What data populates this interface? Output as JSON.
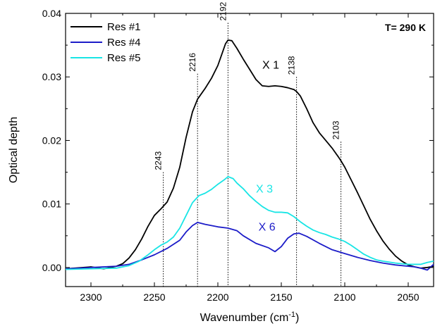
{
  "chart_data": {
    "type": "line",
    "xlabel": "Wavenumber (cm",
    "xlabel_sup": "-1",
    "xlabel_end": ")",
    "ylabel": "Optical depth",
    "xlim": [
      2320,
      2030
    ],
    "ylim": [
      -0.003,
      0.04
    ],
    "x_reversed": true,
    "xticks": [
      2300,
      2250,
      2200,
      2150,
      2100,
      2050
    ],
    "xtick_labels": [
      "2300",
      "2250",
      "2200",
      "2150",
      "2100",
      "2050"
    ],
    "yticks": [
      0.0,
      0.01,
      0.02,
      0.03,
      0.04
    ],
    "ytick_labels": [
      "0.00",
      "0.01",
      "0.02",
      "0.03",
      "0.04"
    ],
    "grid": false,
    "legend": "top-left",
    "temperature_label": "T= 290 K",
    "series": [
      {
        "name": "Res #1",
        "color": "#000000",
        "multiplier": "X 1",
        "multiplier_pos": [
          2165,
          0.0313
        ],
        "x": [
          2320,
          2300,
          2290,
          2280,
          2275,
          2270,
          2265,
          2260,
          2255,
          2250,
          2245,
          2240,
          2235,
          2230,
          2225,
          2220,
          2216,
          2210,
          2205,
          2200,
          2197,
          2194,
          2192,
          2189,
          2185,
          2180,
          2175,
          2170,
          2165,
          2160,
          2155,
          2150,
          2145,
          2140,
          2138,
          2135,
          2130,
          2125,
          2120,
          2115,
          2110,
          2105,
          2103,
          2100,
          2095,
          2090,
          2085,
          2080,
          2075,
          2070,
          2065,
          2060,
          2055,
          2050,
          2045,
          2040,
          2035,
          2030
        ],
        "y": [
          -0.0002,
          0.0001,
          -0.0002,
          0.0002,
          0.0006,
          0.0015,
          0.0028,
          0.0045,
          0.0065,
          0.0082,
          0.0092,
          0.0103,
          0.0125,
          0.0158,
          0.0205,
          0.0245,
          0.0265,
          0.0282,
          0.0298,
          0.0318,
          0.0335,
          0.0352,
          0.0358,
          0.0357,
          0.0345,
          0.0328,
          0.0312,
          0.0296,
          0.0286,
          0.0285,
          0.0286,
          0.0285,
          0.0283,
          0.028,
          0.0277,
          0.027,
          0.025,
          0.0228,
          0.0212,
          0.02,
          0.0188,
          0.0174,
          0.0168,
          0.0158,
          0.0138,
          0.0118,
          0.0097,
          0.0076,
          0.0058,
          0.0042,
          0.0029,
          0.0018,
          0.001,
          0.0004,
          0.0001,
          -0.0001,
          0.0,
          0.0002
        ]
      },
      {
        "name": "Res #4",
        "color": "#1c1cc8",
        "multiplier": "X 6",
        "multiplier_pos": [
          2168,
          0.0058
        ],
        "x": [
          2320,
          2300,
          2280,
          2270,
          2260,
          2250,
          2240,
          2230,
          2225,
          2220,
          2216,
          2210,
          2200,
          2192,
          2185,
          2180,
          2170,
          2160,
          2155,
          2150,
          2145,
          2140,
          2136,
          2130,
          2120,
          2110,
          2100,
          2090,
          2080,
          2070,
          2060,
          2050,
          2045,
          2040,
          2035,
          2030
        ],
        "y": [
          -0.0002,
          0.0,
          0.0002,
          0.0005,
          0.0012,
          0.002,
          0.003,
          0.0043,
          0.0056,
          0.0066,
          0.0071,
          0.0068,
          0.0064,
          0.0062,
          0.0058,
          0.005,
          0.0038,
          0.0031,
          0.0025,
          0.0033,
          0.0046,
          0.0053,
          0.0054,
          0.0049,
          0.0038,
          0.0028,
          0.0022,
          0.0016,
          0.0011,
          0.0007,
          0.0004,
          0.0002,
          0.0001,
          -0.0001,
          -0.0004,
          0.0005
        ]
      },
      {
        "name": "Res #5",
        "color": "#19e5e5",
        "multiplier": "X 3",
        "multiplier_pos": [
          2170,
          0.0118
        ],
        "x": [
          2320,
          2300,
          2280,
          2270,
          2262,
          2255,
          2250,
          2245,
          2240,
          2235,
          2230,
          2225,
          2220,
          2215,
          2210,
          2205,
          2200,
          2195,
          2192,
          2188,
          2185,
          2180,
          2175,
          2170,
          2165,
          2160,
          2155,
          2150,
          2145,
          2140,
          2135,
          2130,
          2125,
          2120,
          2115,
          2110,
          2105,
          2100,
          2095,
          2090,
          2085,
          2080,
          2075,
          2070,
          2060,
          2050,
          2040,
          2035,
          2030
        ],
        "y": [
          -0.0003,
          -0.0002,
          -0.0001,
          0.0003,
          0.001,
          0.002,
          0.0028,
          0.0035,
          0.004,
          0.0048,
          0.0062,
          0.0082,
          0.0102,
          0.0113,
          0.0117,
          0.0123,
          0.0131,
          0.0138,
          0.0143,
          0.014,
          0.0133,
          0.0124,
          0.0113,
          0.0104,
          0.0096,
          0.009,
          0.0087,
          0.0087,
          0.0086,
          0.008,
          0.0072,
          0.0065,
          0.0059,
          0.0055,
          0.0052,
          0.0048,
          0.0045,
          0.0041,
          0.0035,
          0.0028,
          0.0021,
          0.0016,
          0.0012,
          0.001,
          0.0007,
          0.0005,
          0.0005,
          0.0008,
          0.001
        ]
      }
    ],
    "annotations": [
      {
        "label": "2243",
        "x": 2243,
        "y_top": 0.015
      },
      {
        "label": "2216",
        "x": 2216,
        "y_top": 0.0305
      },
      {
        "label": "2192",
        "x": 2192,
        "y_top": 0.0385
      },
      {
        "label": "2138",
        "x": 2138,
        "y_top": 0.03
      },
      {
        "label": "2103",
        "x": 2103,
        "y_top": 0.0198
      }
    ]
  }
}
